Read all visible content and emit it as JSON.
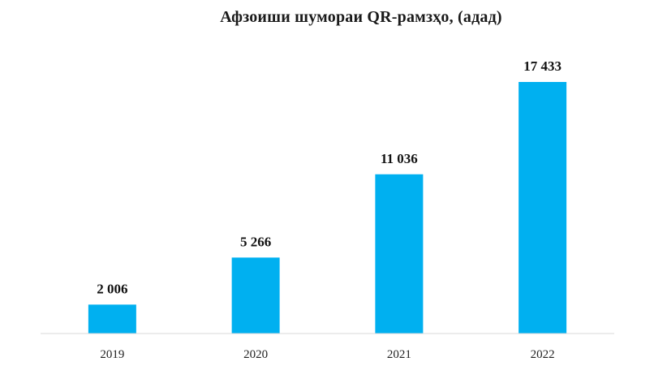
{
  "chart_data": {
    "type": "bar",
    "title": "Афзоиши шумораи QR-рамзҳо, (адад)",
    "categories": [
      "2019",
      "2020",
      "2021",
      "2022"
    ],
    "values": [
      2006,
      5266,
      11036,
      17433
    ],
    "value_labels": [
      "2 006",
      "5 266",
      "11 036",
      "17 433"
    ],
    "xlabel": "",
    "ylabel": "",
    "ylim": [
      0,
      17433
    ],
    "grid": false,
    "legend": "none",
    "bar_color": "#00B0F0",
    "axis_color": "#d9d9d9"
  }
}
